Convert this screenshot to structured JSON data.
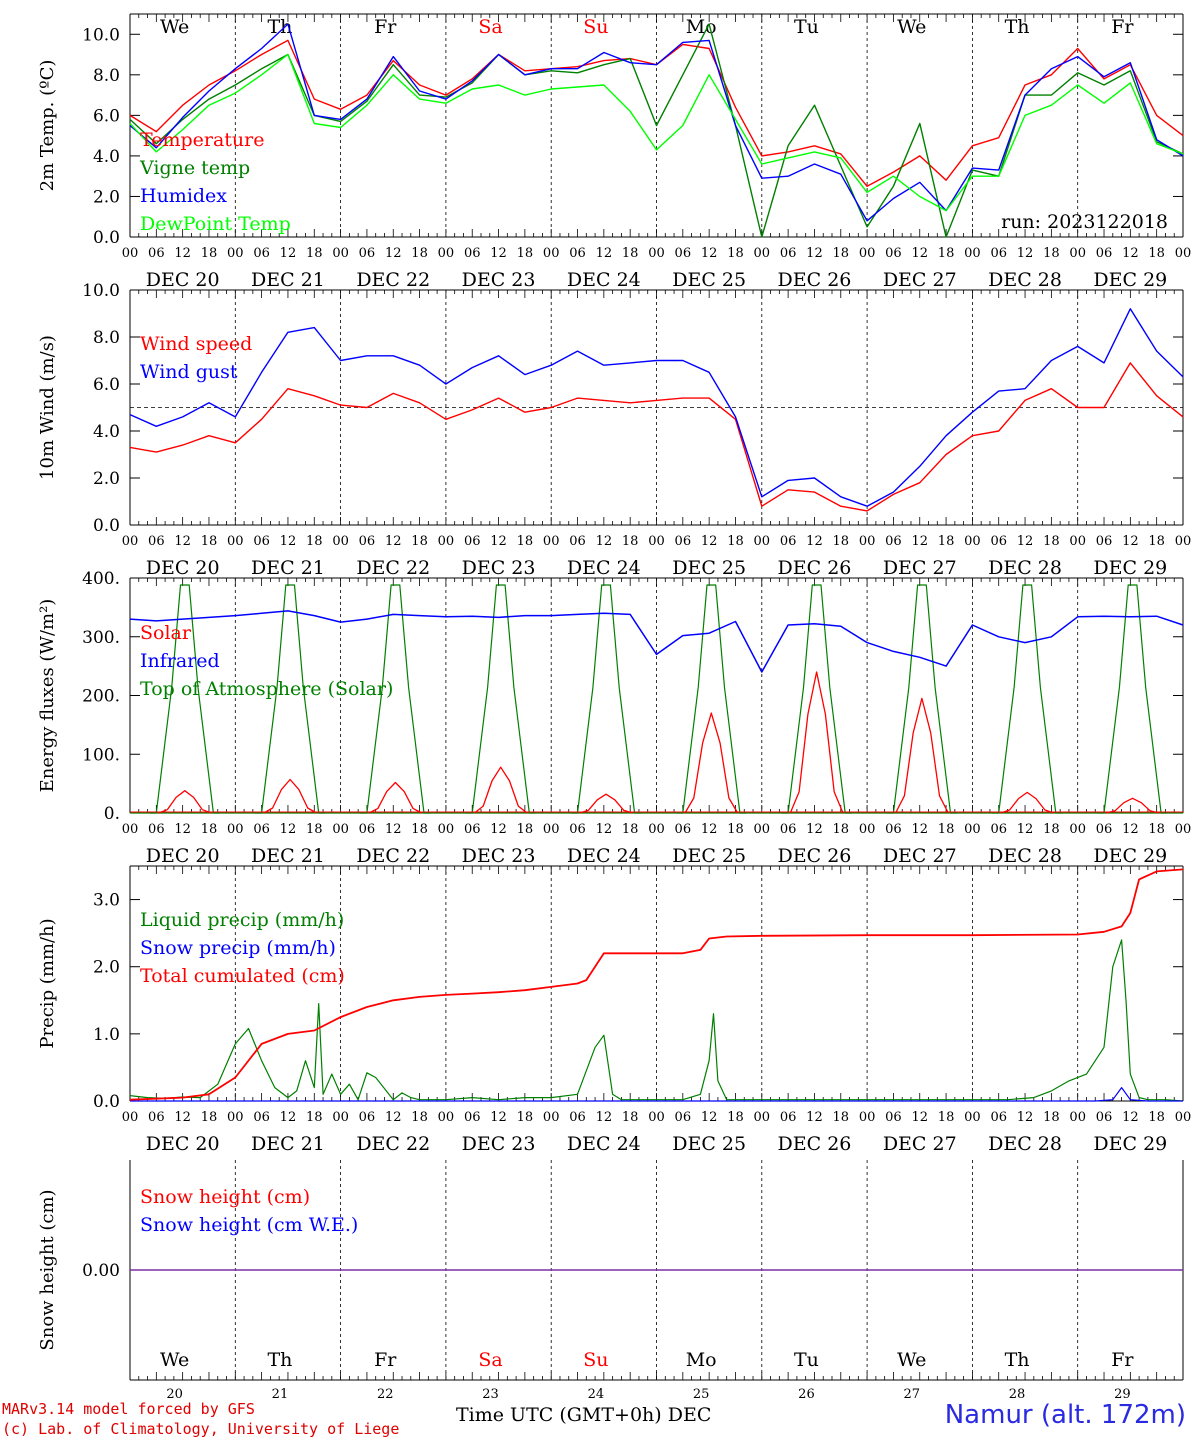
{
  "station": "Namur (alt. 172m)",
  "credits": [
    "MARv3.14 model forced by GFS",
    "(c) Lab. of Climatology, University of Liege"
  ],
  "x_axis_title": "Time UTC (GMT+0h)",
  "month_label": "DEC",
  "hour_ticks": [
    "00",
    "06",
    "12",
    "18"
  ],
  "dates": [
    "DEC 20",
    "DEC 21",
    "DEC 22",
    "DEC 23",
    "DEC 24",
    "DEC 25",
    "DEC 26",
    "DEC 27",
    "DEC 28",
    "DEC 29"
  ],
  "day_numbers": [
    "20",
    "21",
    "22",
    "23",
    "24",
    "25",
    "26",
    "27",
    "28",
    "29"
  ],
  "weekdays": [
    {
      "label": "We",
      "color": "#000000"
    },
    {
      "label": "Th",
      "color": "#000000"
    },
    {
      "label": "Fr",
      "color": "#000000"
    },
    {
      "label": "Sa",
      "color": "#ff0000"
    },
    {
      "label": "Su",
      "color": "#ff0000"
    },
    {
      "label": "Mo",
      "color": "#000000"
    },
    {
      "label": "Tu",
      "color": "#000000"
    },
    {
      "label": "We",
      "color": "#000000"
    },
    {
      "label": "Th",
      "color": "#000000"
    },
    {
      "label": "Fr",
      "color": "#000000"
    }
  ],
  "chart_data": [
    {
      "type": "line",
      "ylabel": "2m Temp. (ºC)",
      "ylim": [
        0,
        11
      ],
      "yticks": [
        "0.0",
        "2.0",
        "4.0",
        "6.0",
        "8.0",
        "10.0"
      ],
      "ytick_values": [
        0,
        2,
        4,
        6,
        8,
        10
      ],
      "annotation": "run: 2023122018",
      "x_hours": [
        0,
        6,
        12,
        18,
        24,
        30,
        36,
        42,
        48,
        54,
        60,
        66,
        72,
        78,
        84,
        90,
        96,
        102,
        108,
        114,
        120,
        126,
        132,
        138,
        144,
        150,
        156,
        162,
        168,
        174,
        180,
        186,
        192,
        198,
        204,
        210,
        216,
        222,
        228,
        234,
        240
      ],
      "series": [
        {
          "name": "Temperature",
          "color": "#ff0000",
          "values": [
            6.0,
            5.2,
            6.5,
            7.5,
            8.2,
            9.0,
            9.7,
            6.8,
            6.3,
            7.0,
            8.7,
            7.5,
            7.0,
            7.8,
            9.0,
            8.2,
            8.3,
            8.4,
            8.7,
            8.8,
            8.5,
            9.5,
            9.3,
            6.4,
            4.0,
            4.2,
            4.5,
            4.1,
            2.5,
            3.2,
            4.0,
            2.8,
            4.5,
            4.9,
            7.5,
            8.0,
            9.3,
            7.8,
            8.5,
            6.0,
            5.0
          ]
        },
        {
          "name": "Vigne temp",
          "color": "#008000",
          "values": [
            5.8,
            4.6,
            5.8,
            6.8,
            7.5,
            8.3,
            9.0,
            6.0,
            5.7,
            6.7,
            8.5,
            7.0,
            6.9,
            7.6,
            9.0,
            8.0,
            8.2,
            8.1,
            8.5,
            8.8,
            5.5,
            8.0,
            10.5,
            5.5,
            0.0,
            4.5,
            6.5,
            3.5,
            0.5,
            2.5,
            5.6,
            0.0,
            3.3,
            3.0,
            7.0,
            7.0,
            8.1,
            7.5,
            8.2,
            4.7,
            4.1
          ]
        },
        {
          "name": "Humidex",
          "color": "#0000ff",
          "values": [
            5.5,
            4.4,
            5.9,
            7.2,
            8.3,
            9.3,
            10.5,
            6.0,
            5.8,
            6.8,
            8.9,
            7.2,
            6.8,
            7.7,
            9.0,
            8.0,
            8.3,
            8.3,
            9.1,
            8.6,
            8.5,
            9.6,
            9.7,
            5.5,
            2.9,
            3.0,
            3.6,
            3.1,
            0.8,
            1.9,
            2.7,
            1.3,
            3.4,
            3.3,
            7.0,
            8.3,
            8.9,
            7.9,
            8.6,
            4.8,
            4.0
          ]
        },
        {
          "name": "DewPoint Temp",
          "color": "#00ff00",
          "values": [
            5.6,
            4.2,
            5.3,
            6.5,
            7.1,
            8.0,
            9.0,
            5.6,
            5.4,
            6.5,
            8.0,
            6.8,
            6.6,
            7.3,
            7.5,
            7.0,
            7.3,
            7.4,
            7.5,
            6.2,
            4.3,
            5.5,
            8.0,
            5.8,
            3.6,
            3.9,
            4.2,
            3.9,
            2.2,
            3.0,
            2.0,
            1.3,
            3.0,
            3.0,
            6.0,
            6.5,
            7.5,
            6.6,
            7.6,
            4.6,
            4.1
          ]
        }
      ]
    },
    {
      "type": "line",
      "ylabel": "10m Wind (m/s)",
      "ylim": [
        0,
        10
      ],
      "yticks": [
        "0.0",
        "2.0",
        "4.0",
        "6.0",
        "8.0",
        "10.0"
      ],
      "ytick_values": [
        0,
        2,
        4,
        6,
        8,
        10
      ],
      "reference_line": 5,
      "x_hours": [
        0,
        6,
        12,
        18,
        24,
        30,
        36,
        42,
        48,
        54,
        60,
        66,
        72,
        78,
        84,
        90,
        96,
        102,
        108,
        114,
        120,
        126,
        132,
        138,
        144,
        150,
        156,
        162,
        168,
        174,
        180,
        186,
        192,
        198,
        204,
        210,
        216,
        222,
        228,
        234,
        240
      ],
      "series": [
        {
          "name": "Wind speed",
          "color": "#ff0000",
          "values": [
            3.3,
            3.1,
            3.4,
            3.8,
            3.5,
            4.5,
            5.8,
            5.5,
            5.1,
            5.0,
            5.6,
            5.2,
            4.5,
            4.9,
            5.4,
            4.8,
            5.0,
            5.4,
            5.3,
            5.2,
            5.3,
            5.4,
            5.4,
            4.5,
            0.8,
            1.5,
            1.4,
            0.8,
            0.6,
            1.3,
            1.8,
            3.0,
            3.8,
            4.0,
            5.3,
            5.8,
            5.0,
            5.0,
            6.9,
            5.5,
            4.6
          ]
        },
        {
          "name": "Wind gust",
          "color": "#0000ff",
          "values": [
            4.7,
            4.2,
            4.6,
            5.2,
            4.6,
            6.5,
            8.2,
            8.4,
            7.0,
            7.2,
            7.2,
            6.8,
            6.0,
            6.7,
            7.2,
            6.4,
            6.8,
            7.4,
            6.8,
            6.9,
            7.0,
            7.0,
            6.5,
            4.6,
            1.2,
            1.9,
            2.0,
            1.2,
            0.8,
            1.4,
            2.5,
            3.8,
            4.8,
            5.7,
            5.8,
            7.0,
            7.6,
            6.9,
            9.2,
            7.4,
            6.3
          ]
        }
      ]
    },
    {
      "type": "line",
      "ylabel": "Energy fluxes (W/m²)",
      "ylim": [
        0,
        400
      ],
      "yticks": [
        "0.",
        "100.",
        "200.",
        "300.",
        "400."
      ],
      "ytick_values": [
        0,
        100,
        200,
        300,
        400
      ],
      "solar_noon_hours": [
        12.5,
        36.5,
        60.5,
        84.5,
        108.5,
        132.5,
        156.5,
        180.5,
        204.5,
        228.5
      ],
      "series": [
        {
          "name": "Solar",
          "color": "#ff0000",
          "daily_peak": [
            38,
            57,
            52,
            78,
            32,
            170,
            240,
            195,
            35,
            25
          ]
        },
        {
          "name": "Infrared",
          "color": "#0000ff",
          "x_hours": [
            0,
            6,
            12,
            18,
            24,
            30,
            36,
            42,
            48,
            54,
            60,
            66,
            72,
            78,
            84,
            90,
            96,
            102,
            108,
            114,
            120,
            126,
            132,
            138,
            144,
            150,
            156,
            162,
            168,
            174,
            180,
            186,
            192,
            198,
            204,
            210,
            216,
            222,
            228,
            234,
            240
          ],
          "values": [
            330,
            327,
            330,
            333,
            336,
            340,
            344,
            336,
            325,
            330,
            338,
            336,
            334,
            335,
            333,
            336,
            336,
            338,
            340,
            338,
            270,
            302,
            306,
            326,
            240,
            320,
            322,
            318,
            290,
            275,
            265,
            250,
            320,
            300,
            290,
            300,
            334,
            335,
            334,
            335,
            320
          ]
        },
        {
          "name": "Top of Atmosphere (Solar)",
          "color": "#008000",
          "daily_peak": [
            388,
            388,
            388,
            388,
            388,
            388,
            388,
            388,
            388,
            388
          ]
        }
      ]
    },
    {
      "type": "line",
      "ylabel": "Precip (mm/h)",
      "ylim": [
        0,
        3.5
      ],
      "yticks": [
        "0.0",
        "1.0",
        "2.0",
        "3.0"
      ],
      "ytick_values": [
        0,
        1,
        2,
        3
      ],
      "series": [
        {
          "name": "Liquid precip (mm/h)",
          "color": "#008000",
          "x_hours": [
            0,
            4,
            8,
            12,
            16,
            20,
            24,
            27,
            30,
            33,
            36,
            38,
            40,
            42,
            43,
            44,
            46,
            48,
            50,
            52,
            54,
            56,
            60,
            62,
            64,
            66,
            72,
            78,
            84,
            90,
            96,
            102,
            106,
            108,
            110,
            112,
            114,
            120,
            126,
            130,
            132,
            133,
            134,
            136,
            140,
            150,
            160,
            170,
            180,
            190,
            200,
            206,
            210,
            214,
            218,
            222,
            224,
            226,
            227,
            228,
            230,
            232,
            236,
            240
          ],
          "values": [
            0.08,
            0.05,
            0.04,
            0.06,
            0.05,
            0.25,
            0.85,
            1.08,
            0.6,
            0.2,
            0.05,
            0.15,
            0.6,
            0.2,
            1.45,
            0.1,
            0.4,
            0.1,
            0.25,
            0.02,
            0.42,
            0.35,
            0.02,
            0.12,
            0.05,
            0.02,
            0.02,
            0.05,
            0.02,
            0.05,
            0.05,
            0.1,
            0.8,
            0.98,
            0.1,
            0.02,
            0.02,
            0.02,
            0.02,
            0.1,
            0.6,
            1.3,
            0.3,
            0.02,
            0.02,
            0.02,
            0.02,
            0.02,
            0.02,
            0.02,
            0.02,
            0.05,
            0.15,
            0.3,
            0.4,
            0.8,
            2.0,
            2.4,
            1.5,
            0.4,
            0.05,
            0.02,
            0.02,
            0.0
          ]
        },
        {
          "name": "Snow precip (mm/h)",
          "color": "#0000ff",
          "x_hours": [
            0,
            220,
            224,
            226,
            228,
            232,
            240
          ],
          "values": [
            0.0,
            0.0,
            0.02,
            0.2,
            0.02,
            0.0,
            0.0
          ]
        },
        {
          "name": "Total cumulated (cm)",
          "color": "#ff0000",
          "x_hours": [
            0,
            12,
            18,
            24,
            30,
            36,
            42,
            48,
            54,
            60,
            66,
            72,
            78,
            84,
            90,
            96,
            102,
            104,
            108,
            114,
            120,
            126,
            130,
            132,
            136,
            144,
            168,
            192,
            216,
            222,
            226,
            228,
            230,
            234,
            240
          ],
          "values": [
            0.02,
            0.05,
            0.1,
            0.35,
            0.85,
            1.0,
            1.05,
            1.25,
            1.4,
            1.5,
            1.55,
            1.58,
            1.6,
            1.62,
            1.65,
            1.7,
            1.75,
            1.8,
            2.2,
            2.2,
            2.2,
            2.2,
            2.25,
            2.42,
            2.45,
            2.46,
            2.47,
            2.47,
            2.48,
            2.52,
            2.6,
            2.8,
            3.3,
            3.42,
            3.45
          ]
        }
      ]
    },
    {
      "type": "line",
      "ylabel": "Snow height (cm)",
      "yticks": [
        "0.00"
      ],
      "ytick_values": [
        0
      ],
      "series": [
        {
          "name": "Snow height (cm)",
          "color": "#ff0000",
          "values": [
            0,
            0
          ]
        },
        {
          "name": "Snow height (cm W.E.)",
          "color": "#0000ff",
          "values": [
            0,
            0
          ]
        }
      ]
    }
  ]
}
